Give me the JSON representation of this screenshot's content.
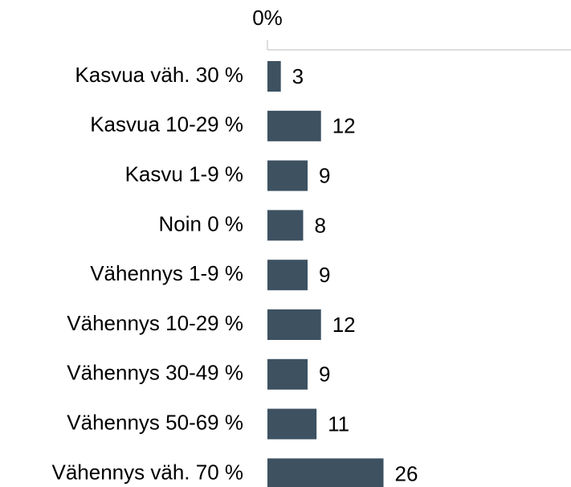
{
  "chart_data": {
    "type": "bar",
    "orientation": "horizontal",
    "categories": [
      "Kasvua väh. 30 %",
      "Kasvua 10-29 %",
      "Kasvu 1-9 %",
      "Noin 0 %",
      "Vähennys 1-9 %",
      "Vähennys 10-29 %",
      "Vähennys 30-49 %",
      "Vähennys 50-69 %",
      "Vähennys väh. 70 %"
    ],
    "values": [
      3,
      12,
      9,
      8,
      9,
      12,
      9,
      11,
      26
    ],
    "color": "#3d5161",
    "xlim": [
      0,
      68
    ],
    "xticks": [
      {
        "value": 0,
        "label": "0%"
      }
    ]
  }
}
